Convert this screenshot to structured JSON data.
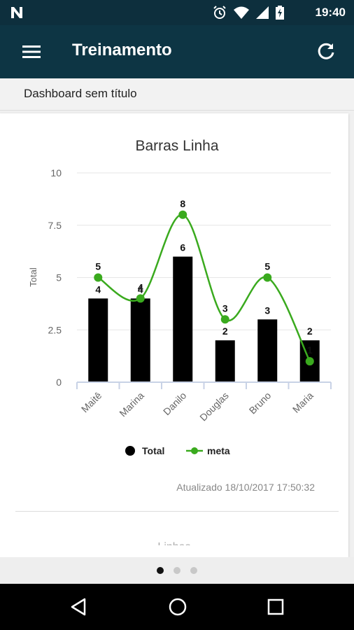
{
  "status_bar": {
    "time": "19:40",
    "icons": [
      "n-logo-icon",
      "alarm-icon",
      "wifi-icon",
      "signal-icon",
      "battery-charging-icon"
    ]
  },
  "app_bar": {
    "title": "Treinamento",
    "menu_icon": "hamburger-menu-icon",
    "action_icon": "refresh-icon"
  },
  "subheader": {
    "label": "Dashboard sem título"
  },
  "chart_data": {
    "type": "bar",
    "title": "Barras Linha",
    "xlabel": "",
    "ylabel": "Total",
    "categories": [
      "Maitê",
      "Marina",
      "Danilo",
      "Douglas",
      "Bruno",
      "Maria"
    ],
    "ylim": [
      0,
      10
    ],
    "yticks": [
      "0",
      "2.5",
      "5",
      "7.5",
      "10"
    ],
    "ytick_values": [
      0,
      2.5,
      5,
      7.5,
      10
    ],
    "series": [
      {
        "name": "Total",
        "kind": "bar",
        "color": "#000000",
        "values": [
          4,
          4,
          6,
          2,
          3,
          2
        ]
      },
      {
        "name": "meta",
        "kind": "line",
        "color": "#3aaa1e",
        "values": [
          5,
          4,
          8,
          3,
          5,
          1
        ]
      }
    ],
    "grid": true,
    "legend": "bottom-center"
  },
  "card": {
    "updated": "Atualizado 18/10/2017 17:50:32",
    "next_title": "Linhas"
  },
  "pager": {
    "count": 3,
    "active": 0
  },
  "nav_bar": {
    "icons": [
      "back-icon",
      "home-icon",
      "recents-icon"
    ]
  }
}
